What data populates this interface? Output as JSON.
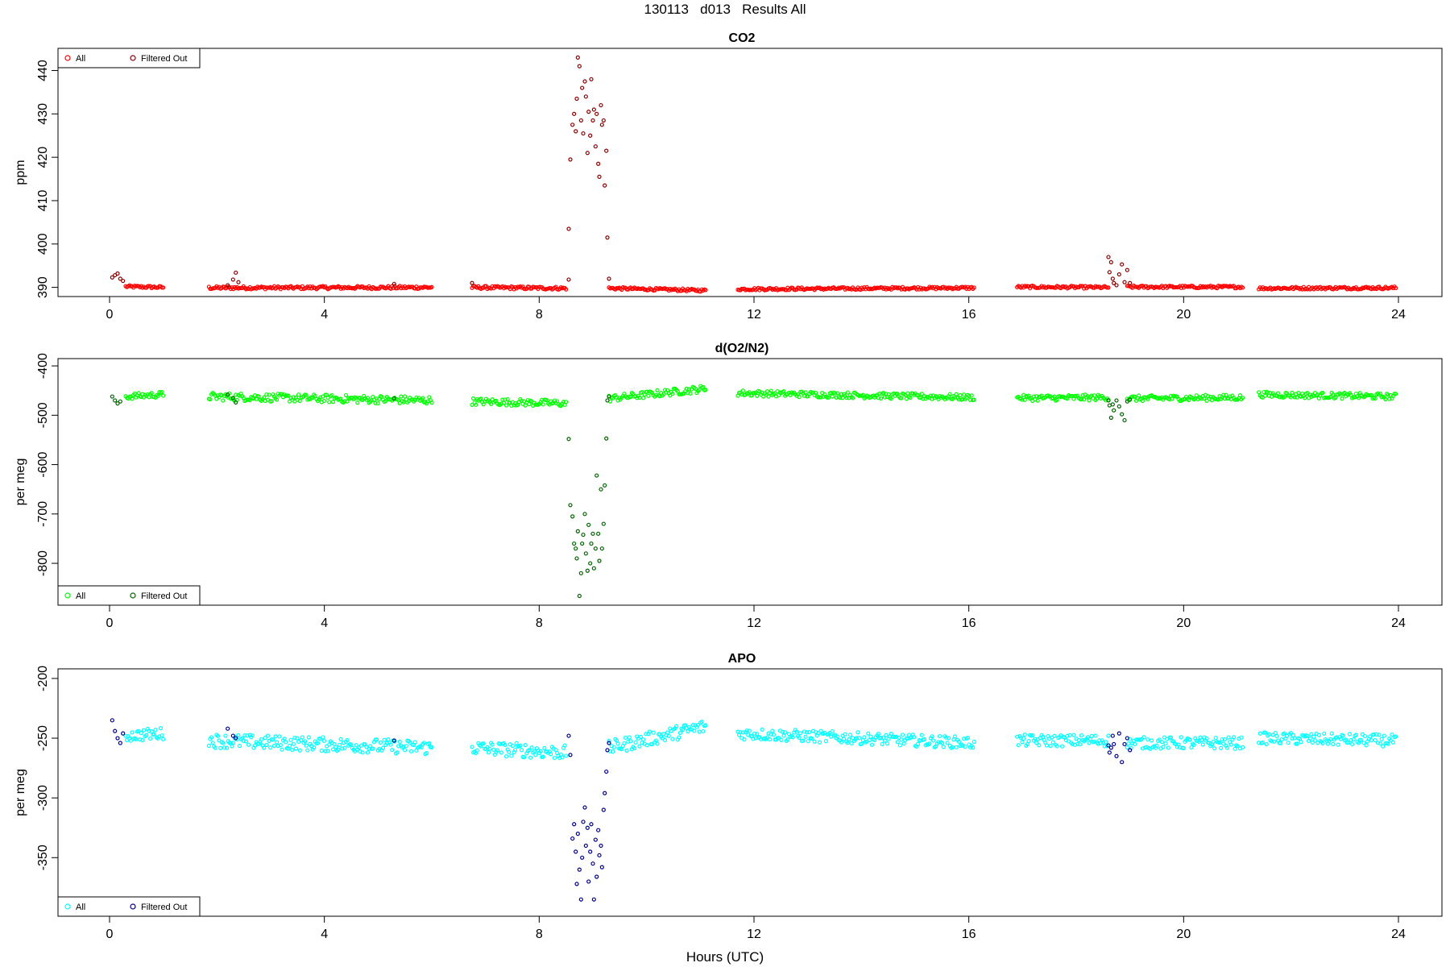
{
  "figure": {
    "title": "130113   d013   Results All",
    "xlabel": "Hours (UTC)"
  },
  "chart_data": [
    {
      "type": "scatter",
      "title": "CO2",
      "ylabel": "ppm",
      "xlim": [
        0,
        24
      ],
      "ylim": [
        389,
        444
      ],
      "xticks": [
        0,
        4,
        8,
        12,
        16,
        20,
        24
      ],
      "yticks": [
        390,
        400,
        410,
        420,
        430,
        440
      ],
      "legend": {
        "position": "top-left",
        "entries": [
          "All",
          "Filtered Out"
        ]
      },
      "colors": {
        "all": "#ff0000",
        "filtered": "#8b0000"
      },
      "series": [
        {
          "name": "All",
          "segments": [
            {
              "x_start": 0.3,
              "x_end": 1.0,
              "y_start": 390.2,
              "y_end": 390.0,
              "noise": 0.3
            },
            {
              "x_start": 1.85,
              "x_end": 6.0,
              "y_start": 389.9,
              "y_end": 390.0,
              "noise": 0.35
            },
            {
              "x_start": 6.75,
              "x_end": 8.5,
              "y_start": 390.0,
              "y_end": 389.8,
              "noise": 0.35
            },
            {
              "x_start": 9.3,
              "x_end": 11.1,
              "y_start": 389.8,
              "y_end": 389.3,
              "noise": 0.3
            },
            {
              "x_start": 11.7,
              "x_end": 16.1,
              "y_start": 389.6,
              "y_end": 389.9,
              "noise": 0.3
            },
            {
              "x_start": 16.9,
              "x_end": 18.6,
              "y_start": 390.1,
              "y_end": 390.0,
              "noise": 0.3
            },
            {
              "x_start": 18.95,
              "x_end": 21.1,
              "y_start": 390.1,
              "y_end": 390.1,
              "noise": 0.3
            },
            {
              "x_start": 21.4,
              "x_end": 23.95,
              "y_start": 389.8,
              "y_end": 389.9,
              "noise": 0.3
            }
          ]
        },
        {
          "name": "Filtered Out",
          "points": [
            [
              0.05,
              392.3
            ],
            [
              0.1,
              392.8
            ],
            [
              0.15,
              393.2
            ],
            [
              0.2,
              392.0
            ],
            [
              0.25,
              391.5
            ],
            [
              2.2,
              390.5
            ],
            [
              2.3,
              391.8
            ],
            [
              2.35,
              393.4
            ],
            [
              2.4,
              391.2
            ],
            [
              5.3,
              390.8
            ],
            [
              6.75,
              391.0
            ],
            [
              8.55,
              391.8
            ],
            [
              8.55,
              403.5
            ],
            [
              8.58,
              419.5
            ],
            [
              8.62,
              427.5
            ],
            [
              8.65,
              430.0
            ],
            [
              8.68,
              426.0
            ],
            [
              8.7,
              433.5
            ],
            [
              8.72,
              443.0
            ],
            [
              8.75,
              441.0
            ],
            [
              8.78,
              428.5
            ],
            [
              8.8,
              436.0
            ],
            [
              8.82,
              425.5
            ],
            [
              8.85,
              437.5
            ],
            [
              8.87,
              434.0
            ],
            [
              8.9,
              421.0
            ],
            [
              8.92,
              430.5
            ],
            [
              8.95,
              425.0
            ],
            [
              8.97,
              438.0
            ],
            [
              9.0,
              428.5
            ],
            [
              9.02,
              431.0
            ],
            [
              9.05,
              422.5
            ],
            [
              9.07,
              430.0
            ],
            [
              9.1,
              418.5
            ],
            [
              9.12,
              415.5
            ],
            [
              9.15,
              432.0
            ],
            [
              9.17,
              427.5
            ],
            [
              9.2,
              428.5
            ],
            [
              9.22,
              413.5
            ],
            [
              9.25,
              421.5
            ],
            [
              9.27,
              401.5
            ],
            [
              9.3,
              392.0
            ],
            [
              18.6,
              397.0
            ],
            [
              18.62,
              393.5
            ],
            [
              18.65,
              395.8
            ],
            [
              18.68,
              392.0
            ],
            [
              18.7,
              391.0
            ],
            [
              18.75,
              390.5
            ],
            [
              18.8,
              393.0
            ],
            [
              18.85,
              395.3
            ],
            [
              18.9,
              391.2
            ],
            [
              18.95,
              394.0
            ],
            [
              19.0,
              391.0
            ]
          ]
        }
      ]
    },
    {
      "type": "scatter",
      "title": "d(O2/N2)",
      "ylabel": "per meg",
      "xlim": [
        0,
        24
      ],
      "ylim": [
        -875,
        -395
      ],
      "xticks": [
        0,
        4,
        8,
        12,
        16,
        20,
        24
      ],
      "yticks": [
        -400,
        -500,
        -600,
        -700,
        -800
      ],
      "legend": {
        "position": "bottom-left",
        "entries": [
          "All",
          "Filtered Out"
        ]
      },
      "colors": {
        "all": "#00ff00",
        "filtered": "#006400"
      },
      "series": [
        {
          "name": "All",
          "segments": [
            {
              "x_start": 0.3,
              "x_end": 1.0,
              "y_start": -462,
              "y_end": -458,
              "noise": 6
            },
            {
              "x_start": 1.85,
              "x_end": 6.0,
              "y_start": -462,
              "y_end": -470,
              "noise": 8
            },
            {
              "x_start": 6.75,
              "x_end": 8.5,
              "y_start": -472,
              "y_end": -476,
              "noise": 7
            },
            {
              "x_start": 9.3,
              "x_end": 11.1,
              "y_start": -466,
              "y_end": -446,
              "noise": 7
            },
            {
              "x_start": 11.7,
              "x_end": 16.1,
              "y_start": -455,
              "y_end": -464,
              "noise": 6
            },
            {
              "x_start": 16.9,
              "x_end": 18.6,
              "y_start": -465,
              "y_end": -464,
              "noise": 6
            },
            {
              "x_start": 18.95,
              "x_end": 21.1,
              "y_start": -466,
              "y_end": -464,
              "noise": 6
            },
            {
              "x_start": 21.4,
              "x_end": 23.95,
              "y_start": -458,
              "y_end": -462,
              "noise": 6
            }
          ]
        },
        {
          "name": "Filtered Out",
          "points": [
            [
              0.05,
              -462
            ],
            [
              0.1,
              -470
            ],
            [
              0.15,
              -476
            ],
            [
              0.2,
              -472
            ],
            [
              2.2,
              -458
            ],
            [
              2.3,
              -465
            ],
            [
              2.35,
              -474
            ],
            [
              5.3,
              -466
            ],
            [
              8.55,
              -548
            ],
            [
              8.58,
              -682
            ],
            [
              8.62,
              -705
            ],
            [
              8.65,
              -760
            ],
            [
              8.68,
              -770
            ],
            [
              8.7,
              -790
            ],
            [
              8.72,
              -735
            ],
            [
              8.75,
              -866
            ],
            [
              8.78,
              -820
            ],
            [
              8.8,
              -760
            ],
            [
              8.82,
              -742
            ],
            [
              8.85,
              -700
            ],
            [
              8.87,
              -780
            ],
            [
              8.9,
              -815
            ],
            [
              8.92,
              -722
            ],
            [
              8.95,
              -800
            ],
            [
              8.97,
              -760
            ],
            [
              9.0,
              -740
            ],
            [
              9.02,
              -810
            ],
            [
              9.05,
              -770
            ],
            [
              9.07,
              -622
            ],
            [
              9.1,
              -740
            ],
            [
              9.12,
              -795
            ],
            [
              9.15,
              -650
            ],
            [
              9.17,
              -770
            ],
            [
              9.2,
              -720
            ],
            [
              9.22,
              -642
            ],
            [
              9.25,
              -547
            ],
            [
              9.27,
              -470
            ],
            [
              9.3,
              -462
            ],
            [
              18.6,
              -470
            ],
            [
              18.62,
              -480
            ],
            [
              18.65,
              -505
            ],
            [
              18.68,
              -478
            ],
            [
              18.7,
              -490
            ],
            [
              18.75,
              -470
            ],
            [
              18.8,
              -482
            ],
            [
              18.85,
              -498
            ],
            [
              18.9,
              -510
            ],
            [
              18.95,
              -472
            ],
            [
              19.0,
              -468
            ]
          ]
        }
      ]
    },
    {
      "type": "scatter",
      "title": "APO",
      "ylabel": "per meg",
      "xlim": [
        0,
        24
      ],
      "ylim": [
        -395,
        -196
      ],
      "xticks": [
        0,
        4,
        8,
        12,
        16,
        20,
        24
      ],
      "yticks": [
        -200,
        -250,
        -300,
        -350
      ],
      "legend": {
        "position": "bottom-left",
        "entries": [
          "All",
          "Filtered Out"
        ]
      },
      "colors": {
        "all": "#00ffff",
        "filtered": "#00008b"
      },
      "series": [
        {
          "name": "All",
          "segments": [
            {
              "x_start": 0.3,
              "x_end": 1.0,
              "y_start": -248,
              "y_end": -246,
              "noise": 5
            },
            {
              "x_start": 1.85,
              "x_end": 6.0,
              "y_start": -252,
              "y_end": -258,
              "noise": 6
            },
            {
              "x_start": 6.75,
              "x_end": 8.5,
              "y_start": -258,
              "y_end": -262,
              "noise": 6
            },
            {
              "x_start": 9.3,
              "x_end": 11.1,
              "y_start": -258,
              "y_end": -240,
              "noise": 6
            },
            {
              "x_start": 11.7,
              "x_end": 16.1,
              "y_start": -246,
              "y_end": -254,
              "noise": 5
            },
            {
              "x_start": 16.9,
              "x_end": 18.6,
              "y_start": -252,
              "y_end": -252,
              "noise": 5
            },
            {
              "x_start": 18.95,
              "x_end": 21.1,
              "y_start": -254,
              "y_end": -254,
              "noise": 5
            },
            {
              "x_start": 21.4,
              "x_end": 23.95,
              "y_start": -250,
              "y_end": -252,
              "noise": 5
            }
          ]
        },
        {
          "name": "Filtered Out",
          "points": [
            [
              0.05,
              -235
            ],
            [
              0.1,
              -244
            ],
            [
              0.15,
              -250
            ],
            [
              0.2,
              -254
            ],
            [
              0.25,
              -246
            ],
            [
              2.2,
              -242
            ],
            [
              2.3,
              -248
            ],
            [
              2.35,
              -250
            ],
            [
              5.3,
              -252
            ],
            [
              8.55,
              -248
            ],
            [
              8.58,
              -264
            ],
            [
              8.62,
              -334
            ],
            [
              8.65,
              -322
            ],
            [
              8.68,
              -345
            ],
            [
              8.7,
              -372
            ],
            [
              8.72,
              -330
            ],
            [
              8.75,
              -360
            ],
            [
              8.78,
              -385
            ],
            [
              8.8,
              -350
            ],
            [
              8.82,
              -320
            ],
            [
              8.85,
              -308
            ],
            [
              8.87,
              -340
            ],
            [
              8.9,
              -325
            ],
            [
              8.92,
              -370
            ],
            [
              8.95,
              -345
            ],
            [
              8.97,
              -322
            ],
            [
              9.0,
              -355
            ],
            [
              9.02,
              -385
            ],
            [
              9.05,
              -335
            ],
            [
              9.07,
              -366
            ],
            [
              9.1,
              -327
            ],
            [
              9.12,
              -348
            ],
            [
              9.15,
              -340
            ],
            [
              9.17,
              -358
            ],
            [
              9.2,
              -310
            ],
            [
              9.22,
              -296
            ],
            [
              9.25,
              -278
            ],
            [
              9.27,
              -260
            ],
            [
              9.3,
              -254
            ],
            [
              18.6,
              -256
            ],
            [
              18.62,
              -262
            ],
            [
              18.65,
              -258
            ],
            [
              18.68,
              -248
            ],
            [
              18.7,
              -255
            ],
            [
              18.75,
              -265
            ],
            [
              18.8,
              -246
            ],
            [
              18.85,
              -270
            ],
            [
              18.9,
              -255
            ],
            [
              18.95,
              -250
            ],
            [
              19.0,
              -260
            ]
          ]
        }
      ]
    }
  ]
}
